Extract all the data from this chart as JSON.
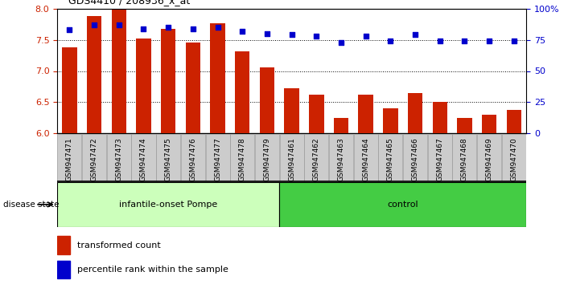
{
  "title": "GDS4410 / 208936_x_at",
  "samples": [
    "GSM947471",
    "GSM947472",
    "GSM947473",
    "GSM947474",
    "GSM947475",
    "GSM947476",
    "GSM947477",
    "GSM947478",
    "GSM947479",
    "GSM947461",
    "GSM947462",
    "GSM947463",
    "GSM947464",
    "GSM947465",
    "GSM947466",
    "GSM947467",
    "GSM947468",
    "GSM947469",
    "GSM947470"
  ],
  "transformed_count": [
    7.38,
    7.88,
    7.98,
    7.52,
    7.68,
    7.46,
    7.77,
    7.32,
    7.06,
    6.72,
    6.62,
    6.25,
    6.62,
    6.4,
    6.65,
    6.5,
    6.25,
    6.3,
    6.38
  ],
  "percentile_rank": [
    83,
    87,
    87,
    84,
    85,
    84,
    85,
    82,
    80,
    79,
    78,
    73,
    78,
    74,
    79,
    74,
    74,
    74,
    74
  ],
  "group1_label": "infantile-onset Pompe",
  "group2_label": "control",
  "group1_count": 9,
  "group2_count": 10,
  "bar_color": "#cc2200",
  "dot_color": "#0000cc",
  "group1_bg": "#ccffbb",
  "group2_bg": "#44cc44",
  "tick_bg": "#cccccc",
  "ylim_left": [
    6.0,
    8.0
  ],
  "ylim_right": [
    0,
    100
  ],
  "yticks_left": [
    6.0,
    6.5,
    7.0,
    7.5,
    8.0
  ],
  "yticks_right": [
    0,
    25,
    50,
    75,
    100
  ],
  "ytick_labels_right": [
    "0",
    "25",
    "50",
    "75",
    "100%"
  ],
  "grid_values": [
    6.5,
    7.0,
    7.5
  ],
  "legend_bar": "transformed count",
  "legend_dot": "percentile rank within the sample",
  "disease_state_label": "disease state"
}
